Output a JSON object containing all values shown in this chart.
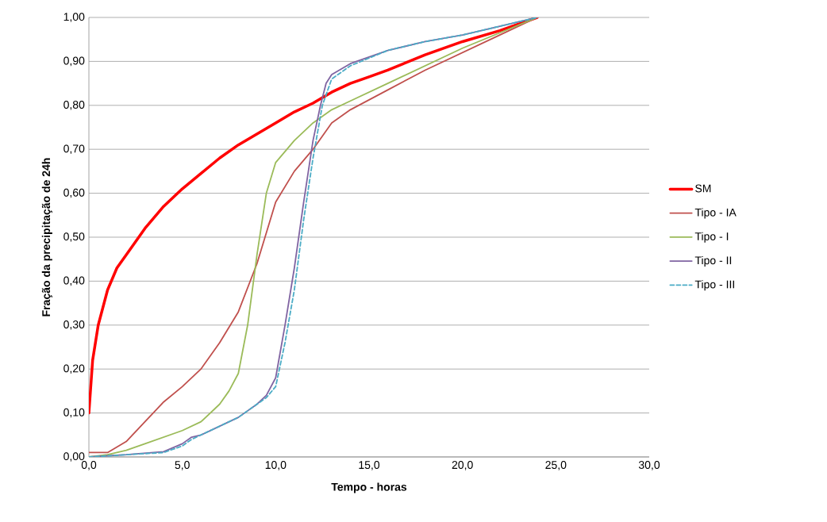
{
  "chart_data": {
    "type": "line",
    "xlabel": "Tempo - horas",
    "ylabel": "Fração da precipitação de 24h",
    "xlim": [
      0,
      30
    ],
    "ylim": [
      0,
      1
    ],
    "xticks": [
      {
        "value": 0,
        "label": "0,0"
      },
      {
        "value": 5,
        "label": "5,0"
      },
      {
        "value": 10,
        "label": "10,0"
      },
      {
        "value": 15,
        "label": "15,0"
      },
      {
        "value": 20,
        "label": "20,0"
      },
      {
        "value": 25,
        "label": "25,0"
      },
      {
        "value": 30,
        "label": "30,0"
      }
    ],
    "yticks": [
      {
        "value": 0,
        "label": "0,00"
      },
      {
        "value": 0.1,
        "label": "0,10"
      },
      {
        "value": 0.2,
        "label": "0,20"
      },
      {
        "value": 0.3,
        "label": "0,30"
      },
      {
        "value": 0.4,
        "label": "0,40"
      },
      {
        "value": 0.5,
        "label": "0,50"
      },
      {
        "value": 0.6,
        "label": "0,60"
      },
      {
        "value": 0.7,
        "label": "0,70"
      },
      {
        "value": 0.8,
        "label": "0,80"
      },
      {
        "value": 0.9,
        "label": "0,90"
      },
      {
        "value": 1,
        "label": "1,00"
      }
    ],
    "grid": "y",
    "legend": "right",
    "marker": "none",
    "series": [
      {
        "name": "SM",
        "color": "#ff0000",
        "line_style": "solid",
        "x": [
          0,
          0.2,
          0.5,
          1,
          1.5,
          2,
          3,
          4,
          5,
          6,
          7,
          8,
          9,
          10,
          11,
          12,
          13,
          14,
          15,
          16,
          18,
          20,
          22,
          24
        ],
        "values": [
          0.1,
          0.22,
          0.3,
          0.38,
          0.43,
          0.46,
          0.52,
          0.57,
          0.61,
          0.645,
          0.68,
          0.71,
          0.735,
          0.76,
          0.785,
          0.805,
          0.83,
          0.85,
          0.865,
          0.88,
          0.915,
          0.945,
          0.97,
          1.0
        ]
      },
      {
        "name": "Tipo - IA",
        "color": "#c0504d",
        "line_style": "solid",
        "x": [
          0,
          1,
          2,
          3,
          4,
          5,
          6,
          7,
          8,
          9,
          9.5,
          10,
          11,
          12,
          13,
          14,
          16,
          18,
          20,
          22,
          24
        ],
        "values": [
          0.01,
          0.01,
          0.035,
          0.08,
          0.125,
          0.16,
          0.2,
          0.26,
          0.33,
          0.44,
          0.51,
          0.58,
          0.65,
          0.7,
          0.76,
          0.79,
          0.835,
          0.88,
          0.92,
          0.96,
          1.0
        ]
      },
      {
        "name": "Tipo - I",
        "color": "#9bbb59",
        "line_style": "solid",
        "x": [
          0,
          1,
          2,
          3,
          4,
          5,
          6,
          7,
          7.5,
          8,
          8.5,
          9,
          9.5,
          10,
          11,
          12,
          13,
          14,
          16,
          18,
          20,
          22,
          24
        ],
        "values": [
          0.0,
          0.005,
          0.015,
          0.03,
          0.045,
          0.06,
          0.08,
          0.12,
          0.15,
          0.19,
          0.3,
          0.46,
          0.6,
          0.67,
          0.72,
          0.76,
          0.79,
          0.81,
          0.85,
          0.89,
          0.93,
          0.965,
          1.0
        ]
      },
      {
        "name": "Tipo - II",
        "color": "#8064a2",
        "line_style": "solid",
        "x": [
          0,
          2,
          4,
          5,
          5.5,
          6,
          7,
          8,
          9,
          9.5,
          10,
          10.5,
          11,
          11.5,
          12,
          12.4,
          12.7,
          13,
          14,
          16,
          18,
          20,
          22,
          24
        ],
        "values": [
          0.0,
          0.005,
          0.012,
          0.03,
          0.045,
          0.05,
          0.07,
          0.09,
          0.12,
          0.14,
          0.18,
          0.3,
          0.43,
          0.58,
          0.72,
          0.8,
          0.85,
          0.87,
          0.895,
          0.925,
          0.945,
          0.96,
          0.98,
          1.0
        ]
      },
      {
        "name": "Tipo - III",
        "color": "#4bacc6",
        "line_style": "dashed",
        "x": [
          0,
          2,
          4,
          5,
          5.5,
          6,
          7,
          8,
          9,
          9.5,
          10,
          10.5,
          11,
          11.5,
          12,
          12.5,
          13,
          14,
          16,
          18,
          20,
          22,
          24
        ],
        "values": [
          0.0,
          0.005,
          0.01,
          0.025,
          0.04,
          0.05,
          0.07,
          0.09,
          0.12,
          0.135,
          0.16,
          0.26,
          0.38,
          0.54,
          0.68,
          0.8,
          0.86,
          0.89,
          0.925,
          0.945,
          0.96,
          0.98,
          1.0
        ]
      }
    ]
  }
}
